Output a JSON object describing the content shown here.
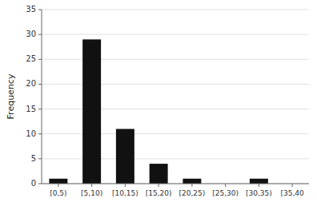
{
  "chart_data": {
    "type": "bar",
    "ylabel": "Frequency",
    "categories": [
      "[0,5)",
      "[5,10)",
      "[10,15)",
      "[15,20)",
      "[20,25)",
      "[25,30)",
      "[30,35)",
      "[35,40"
    ],
    "values": [
      1,
      29,
      11,
      4,
      1,
      0,
      1,
      0
    ],
    "color": "#111111",
    "ylim": [
      0,
      35
    ],
    "yticks": [
      0,
      5,
      10,
      15,
      20,
      25,
      30,
      35
    ],
    "grid": true
  }
}
